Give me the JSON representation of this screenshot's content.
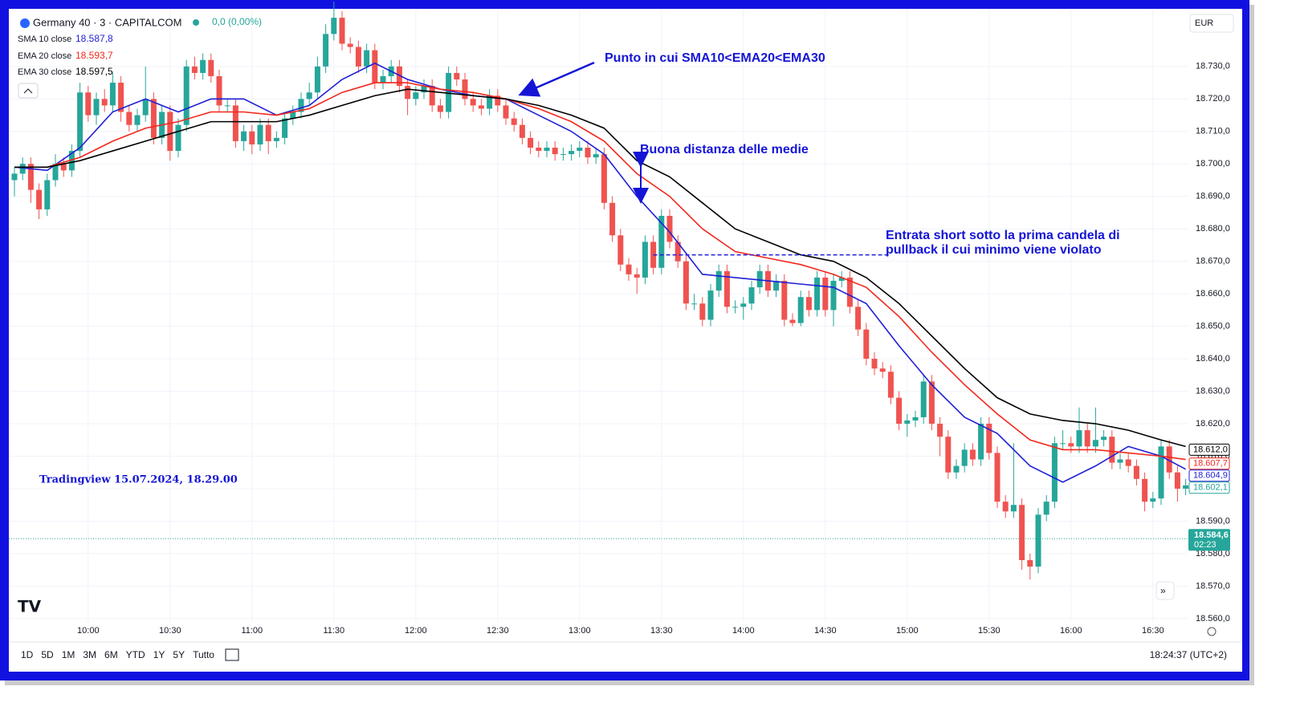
{
  "chart_data": {
    "type": "candlestick",
    "symbol": "Germany 40 · 3 · CAPITALCOM",
    "change": "0,0 (0,00%)",
    "currency": "EUR",
    "x": [
      "09:33",
      "09:36",
      "09:39",
      "09:42",
      "09:45",
      "09:48",
      "09:51",
      "09:54",
      "09:57",
      "10:00",
      "10:03",
      "10:06",
      "10:09",
      "10:12",
      "10:15",
      "10:18",
      "10:21",
      "10:24",
      "10:27",
      "10:30",
      "10:33",
      "10:36",
      "10:39",
      "10:42",
      "10:45",
      "10:48",
      "10:51",
      "10:54",
      "10:57",
      "11:00",
      "11:03",
      "11:06",
      "11:09",
      "11:12",
      "11:15",
      "11:18",
      "11:21",
      "11:24",
      "11:27",
      "11:30",
      "11:33",
      "11:36",
      "11:39",
      "11:42",
      "11:45",
      "11:48",
      "11:51",
      "11:54",
      "11:57",
      "12:00",
      "12:03",
      "12:06",
      "12:09",
      "12:12",
      "12:15",
      "12:18",
      "12:21",
      "12:24",
      "12:27",
      "12:30",
      "12:33",
      "12:36",
      "12:39",
      "12:42",
      "12:45",
      "12:48",
      "12:51",
      "12:54",
      "12:57",
      "13:00",
      "13:03",
      "13:06",
      "13:09",
      "13:12",
      "13:15",
      "13:18",
      "13:21",
      "13:24",
      "13:27",
      "13:30",
      "13:33",
      "13:36",
      "13:39",
      "13:42",
      "13:45",
      "13:48",
      "13:51",
      "13:54",
      "13:57",
      "14:00",
      "14:03",
      "14:06",
      "14:09",
      "14:12",
      "14:15",
      "14:18",
      "14:21",
      "14:24",
      "14:27",
      "14:30",
      "14:33",
      "14:36",
      "14:39",
      "14:42",
      "14:45",
      "14:48",
      "14:51",
      "14:54",
      "14:57",
      "15:00",
      "15:03",
      "15:06",
      "15:09",
      "15:12",
      "15:15",
      "15:18",
      "15:21",
      "15:24",
      "15:27",
      "15:30",
      "15:33",
      "15:36",
      "15:39",
      "15:42",
      "15:45",
      "15:48",
      "15:51",
      "15:54",
      "15:57",
      "16:00",
      "16:03",
      "16:06",
      "16:09",
      "16:12",
      "16:15",
      "16:18",
      "16:21",
      "16:24",
      "16:27",
      "16:30",
      "16:33",
      "16:36",
      "16:39",
      "16:42"
    ],
    "open": [
      18695,
      18697,
      18700,
      18692,
      18686,
      18695,
      18700,
      18698,
      18704,
      18722,
      18715,
      18720,
      18718,
      18725,
      18716,
      18712,
      18715,
      18720,
      18708,
      18716,
      18704,
      18712,
      18730,
      18728,
      18732,
      18727,
      18718,
      18718,
      18707,
      18710,
      18706,
      18712,
      18707,
      18708,
      18714,
      18716,
      18720,
      18722,
      18730,
      18740,
      18745,
      18737,
      18736,
      18730,
      18735,
      18725,
      18727,
      18730,
      18724,
      18720,
      18722,
      18724,
      18718,
      18716,
      18728,
      18726,
      18720,
      18718,
      18717,
      18721,
      18718,
      18714,
      18712,
      18708,
      18705,
      18704,
      18705,
      18703,
      18703,
      18704,
      18705,
      18702,
      18703,
      18688,
      18678,
      18669,
      18666,
      18665,
      18676,
      18668,
      18684,
      18676,
      18670,
      18657,
      18657,
      18652,
      18661,
      18667,
      18656,
      18656,
      18657,
      18662,
      18667,
      18661,
      18664,
      18652,
      18651,
      18659,
      18655,
      18665,
      18655,
      18664,
      18665,
      18656,
      18649,
      18640,
      18637,
      18636,
      18628,
      18620,
      18621,
      18622,
      18633,
      18620,
      18616,
      18605,
      18607,
      18612,
      18609,
      18620,
      18611,
      18596,
      18593,
      18595,
      18578,
      18576,
      18592,
      18596,
      18614,
      18614,
      18613,
      18618,
      18613,
      18615,
      18616,
      18608,
      18609,
      18607,
      18603,
      18596,
      18597,
      18613,
      18605,
      18600
    ],
    "high": [
      18699,
      18702,
      18702,
      18694,
      18697,
      18703,
      18702,
      18706,
      18725,
      18724,
      18722,
      18723,
      18728,
      18727,
      18718,
      18717,
      18730,
      18722,
      18718,
      18718,
      18714,
      18732,
      18733,
      18734,
      18734,
      18729,
      18720,
      18720,
      18712,
      18712,
      18714,
      18714,
      18710,
      18716,
      18718,
      18722,
      18725,
      18733,
      18743,
      18750,
      18747,
      18739,
      18738,
      18737,
      18737,
      18729,
      18732,
      18732,
      18726,
      18724,
      18726,
      18726,
      18720,
      18730,
      18730,
      18728,
      18722,
      18720,
      18723,
      18723,
      18720,
      18716,
      18714,
      18710,
      18707,
      18707,
      18707,
      18705,
      18706,
      18707,
      18707,
      18705,
      18705,
      18690,
      18680,
      18671,
      18668,
      18678,
      18678,
      18686,
      18686,
      18678,
      18672,
      18660,
      18659,
      18663,
      18669,
      18669,
      18658,
      18659,
      18664,
      18669,
      18669,
      18666,
      18666,
      18654,
      18661,
      18661,
      18667,
      18667,
      18666,
      18667,
      18667,
      18658,
      18651,
      18642,
      18639,
      18638,
      18630,
      18623,
      18624,
      18635,
      18635,
      18622,
      18618,
      18609,
      18614,
      18614,
      18622,
      18622,
      18613,
      18598,
      18614,
      18597,
      18580,
      18594,
      18598,
      18616,
      18618,
      18616,
      18625,
      18620,
      18625,
      18618,
      18618,
      18611,
      18611,
      18609,
      18605,
      18599,
      18615,
      18615,
      18607,
      18603
    ],
    "low": [
      18690,
      18695,
      18688,
      18683,
      18684,
      18693,
      18696,
      18696,
      18702,
      18713,
      18712,
      18716,
      18716,
      18713,
      18710,
      18710,
      18713,
      18706,
      18706,
      18701,
      18702,
      18710,
      18726,
      18726,
      18725,
      18716,
      18716,
      18705,
      18704,
      18703,
      18704,
      18703,
      18705,
      18706,
      18712,
      18714,
      18718,
      18720,
      18728,
      18738,
      18735,
      18734,
      18728,
      18728,
      18723,
      18723,
      18725,
      18722,
      18715,
      18718,
      18720,
      18716,
      18714,
      18714,
      18724,
      18718,
      18716,
      18715,
      18715,
      18716,
      18712,
      18710,
      18706,
      18703,
      18702,
      18702,
      18701,
      18701,
      18701,
      18702,
      18700,
      18700,
      18686,
      18676,
      18667,
      18664,
      18660,
      18663,
      18666,
      18666,
      18674,
      18668,
      18655,
      18655,
      18650,
      18650,
      18659,
      18654,
      18654,
      18652,
      18655,
      18660,
      18659,
      18659,
      18650,
      18650,
      18650,
      18653,
      18653,
      18653,
      18650,
      18662,
      18654,
      18647,
      18638,
      18635,
      18634,
      18626,
      18618,
      18616,
      18619,
      18620,
      18618,
      18610,
      18603,
      18603,
      18605,
      18607,
      18607,
      18609,
      18594,
      18591,
      18591,
      18575,
      18572,
      18574,
      18590,
      18594,
      18612,
      18611,
      18611,
      18611,
      18611,
      18613,
      18606,
      18606,
      18605,
      18601,
      18593,
      18594,
      18595,
      18603,
      18596,
      18598
    ],
    "close": [
      18697,
      18700,
      18692,
      18686,
      18695,
      18700,
      18698,
      18704,
      18722,
      18715,
      18720,
      18718,
      18725,
      18716,
      18712,
      18715,
      18720,
      18708,
      18716,
      18704,
      18712,
      18730,
      18728,
      18732,
      18727,
      18718,
      18718,
      18707,
      18710,
      18706,
      18712,
      18707,
      18708,
      18714,
      18716,
      18720,
      18722,
      18730,
      18740,
      18745,
      18737,
      18736,
      18730,
      18735,
      18725,
      18727,
      18730,
      18724,
      18720,
      18722,
      18724,
      18718,
      18716,
      18728,
      18726,
      18720,
      18718,
      18717,
      18721,
      18718,
      18714,
      18712,
      18708,
      18705,
      18704,
      18705,
      18703,
      18703,
      18704,
      18705,
      18702,
      18703,
      18688,
      18678,
      18669,
      18666,
      18665,
      18676,
      18668,
      18684,
      18676,
      18670,
      18657,
      18657,
      18652,
      18661,
      18667,
      18656,
      18656,
      18657,
      18662,
      18667,
      18661,
      18664,
      18652,
      18651,
      18659,
      18655,
      18665,
      18655,
      18664,
      18665,
      18656,
      18649,
      18640,
      18637,
      18636,
      18628,
      18620,
      18621,
      18622,
      18633,
      18620,
      18616,
      18605,
      18607,
      18612,
      18609,
      18620,
      18611,
      18596,
      18593,
      18595,
      18578,
      18576,
      18592,
      18596,
      18614,
      18614,
      18613,
      18618,
      18613,
      18615,
      18616,
      18608,
      18609,
      18607,
      18603,
      18596,
      18597,
      18613,
      18605,
      18600,
      18601
    ],
    "up_color": "#26a69a",
    "down_color": "#ef5350",
    "overlays": [
      {
        "name": "SMA 10 close",
        "value_label": "18.587,8",
        "color": "#1f1fd6",
        "x": [
          "09:33",
          "09:45",
          "09:57",
          "10:09",
          "10:21",
          "10:33",
          "10:45",
          "10:57",
          "11:09",
          "11:21",
          "11:33",
          "11:45",
          "11:57",
          "12:09",
          "12:21",
          "12:33",
          "12:45",
          "12:57",
          "13:09",
          "13:21",
          "13:33",
          "13:45",
          "13:57",
          "14:09",
          "14:21",
          "14:33",
          "14:45",
          "14:57",
          "15:09",
          "15:21",
          "15:33",
          "15:45",
          "15:57",
          "16:09",
          "16:21",
          "16:33",
          "16:42"
        ],
        "values": [
          18699,
          18698,
          18705,
          18716,
          18720,
          18716,
          18720,
          18720,
          18715,
          18718,
          18726,
          18731,
          18726,
          18723,
          18721,
          18720,
          18715,
          18710,
          18703,
          18690,
          18679,
          18666,
          18665,
          18664,
          18663,
          18662,
          18657,
          18644,
          18632,
          18622,
          18617,
          18607,
          18602,
          18607,
          18613,
          18610,
          18606
        ]
      },
      {
        "name": "EMA 20 close",
        "value_label": "18.593,7",
        "color": "#f2271c",
        "x": [
          "09:33",
          "09:45",
          "09:57",
          "10:09",
          "10:21",
          "10:33",
          "10:45",
          "10:57",
          "11:09",
          "11:21",
          "11:33",
          "11:45",
          "11:57",
          "12:09",
          "12:21",
          "12:33",
          "12:45",
          "12:57",
          "13:09",
          "13:21",
          "13:33",
          "13:45",
          "13:57",
          "14:09",
          "14:21",
          "14:33",
          "14:45",
          "14:57",
          "15:09",
          "15:21",
          "15:33",
          "15:45",
          "15:57",
          "16:09",
          "16:21",
          "16:33",
          "16:42"
        ],
        "values": [
          18699,
          18699,
          18702,
          18707,
          18711,
          18713,
          18716,
          18716,
          18715,
          18717,
          18722,
          18725,
          18725,
          18723,
          18722,
          18720,
          18717,
          18713,
          18707,
          18697,
          18690,
          18680,
          18673,
          18671,
          18669,
          18666,
          18662,
          18653,
          18642,
          18632,
          18623,
          18615,
          18612,
          18612,
          18611,
          18610,
          18609
        ]
      },
      {
        "name": "EMA 30 close",
        "value_label": "18.597,5",
        "color": "#000000",
        "x": [
          "09:33",
          "09:45",
          "09:57",
          "10:09",
          "10:21",
          "10:33",
          "10:45",
          "10:57",
          "11:09",
          "11:21",
          "11:33",
          "11:45",
          "11:57",
          "12:09",
          "12:21",
          "12:33",
          "12:45",
          "12:57",
          "13:09",
          "13:21",
          "13:33",
          "13:45",
          "13:57",
          "14:09",
          "14:21",
          "14:33",
          "14:45",
          "14:57",
          "15:09",
          "15:21",
          "15:33",
          "15:45",
          "15:57",
          "16:09",
          "16:21",
          "16:33",
          "16:42"
        ],
        "values": [
          18699,
          18699,
          18701,
          18704,
          18707,
          18710,
          18713,
          18713,
          18713,
          18715,
          18718,
          18721,
          18723,
          18722,
          18721,
          18720,
          18718,
          18715,
          18711,
          18701,
          18696,
          18688,
          18680,
          18676,
          18672,
          18670,
          18665,
          18657,
          18647,
          18637,
          18628,
          18623,
          18621,
          18620,
          18618,
          18615,
          18613
        ]
      }
    ],
    "ylim": [
      18552.8,
      18747.5
    ],
    "yticks": [
      {
        "value": 18560,
        "label": "18.560,0"
      },
      {
        "value": 18570,
        "label": "18.570,0"
      },
      {
        "value": 18580,
        "label": "18.580,0"
      },
      {
        "value": 18590,
        "label": "18.590,0"
      },
      {
        "value": 18600,
        "label": "18.600,0"
      },
      {
        "value": 18610,
        "label": "18.610,0"
      },
      {
        "value": 18620,
        "label": "18.620,0"
      },
      {
        "value": 18630,
        "label": "18.630,0"
      },
      {
        "value": 18640,
        "label": "18.640,0"
      },
      {
        "value": 18650,
        "label": "18.650,0"
      },
      {
        "value": 18660,
        "label": "18.660,0"
      },
      {
        "value": 18670,
        "label": "18.670,0"
      },
      {
        "value": 18680,
        "label": "18.680,0"
      },
      {
        "value": 18690,
        "label": "18.690,0"
      },
      {
        "value": 18700,
        "label": "18.700,0"
      },
      {
        "value": 18710,
        "label": "18.710,0"
      },
      {
        "value": 18720,
        "label": "18.720,0"
      },
      {
        "value": 18730,
        "label": "18.730,0"
      }
    ],
    "xticks": [
      "10:00",
      "10:30",
      "11:00",
      "11:30",
      "12:00",
      "12:30",
      "13:00",
      "13:30",
      "14:00",
      "14:30",
      "15:00",
      "15:30",
      "16:00",
      "16:30"
    ],
    "grid": true,
    "price_tags": [
      {
        "value": 18612.0,
        "label": "18.612,0",
        "color": "#000000"
      },
      {
        "value": 18607.7,
        "label": "18.607,7",
        "color": "#f2271c"
      },
      {
        "value": 18604.9,
        "label": "18.604,9",
        "color": "#1f1fd6"
      },
      {
        "value": 18602.1,
        "label": "18.602,1",
        "color": "#26a69a"
      }
    ],
    "last_price": {
      "value": 18584.6,
      "label": "18.584,6",
      "countdown": "02:23",
      "color": "#26a69a"
    },
    "level_line": {
      "value": 18672,
      "from": "13:27",
      "to": "14:54",
      "color": "#1f1fd6"
    },
    "annotations": [
      "Punto in cui SMA10<EMA20<EMA30",
      "Buona distanza delle medie",
      "Entrata short sotto la prima candela di",
      "pullback il cui minimo viene violato",
      "Tradingview 15.07.2024, 18.29.00"
    ],
    "ranges": [
      "1D",
      "5D",
      "1M",
      "3M",
      "6M",
      "YTD",
      "1Y",
      "5Y",
      "Tutto"
    ],
    "clock": "18:24:37 (UTC+2)"
  }
}
